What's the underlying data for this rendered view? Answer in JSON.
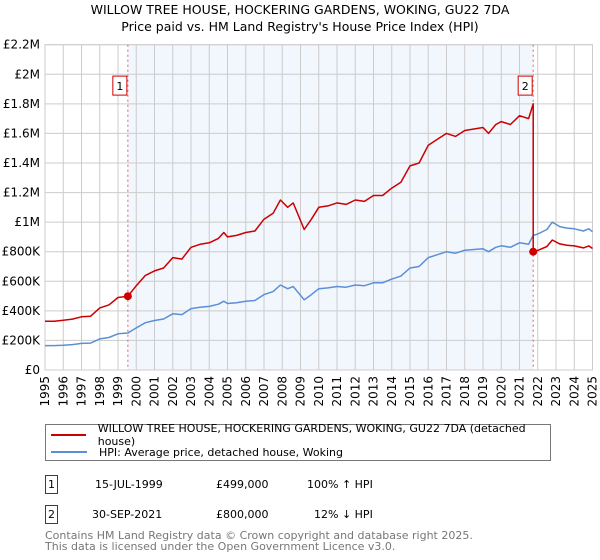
{
  "title_line1": "WILLOW TREE HOUSE, HOCKERING GARDENS, WOKING, GU22 7DA",
  "title_line2": "Price paid vs. HM Land Registry's House Price Index (HPI)",
  "chart_data": {
    "type": "line",
    "title": "WILLOW TREE HOUSE, HOCKERING GARDENS, WOKING, GU22 7DA — Price paid vs. HM Land Registry's House Price Index (HPI)",
    "xlim": [
      1995,
      2025
    ],
    "ylim": [
      0,
      2200000
    ],
    "y_ticks": [
      {
        "v": 0,
        "label": "£0"
      },
      {
        "v": 200000,
        "label": "£200K"
      },
      {
        "v": 400000,
        "label": "£400K"
      },
      {
        "v": 600000,
        "label": "£600K"
      },
      {
        "v": 800000,
        "label": "£800K"
      },
      {
        "v": 1000000,
        "label": "£1M"
      },
      {
        "v": 1200000,
        "label": "£1.2M"
      },
      {
        "v": 1400000,
        "label": "£1.4M"
      },
      {
        "v": 1600000,
        "label": "£1.6M"
      },
      {
        "v": 1800000,
        "label": "£1.8M"
      },
      {
        "v": 2000000,
        "label": "£2M"
      },
      {
        "v": 2200000,
        "label": "£2.2M"
      }
    ],
    "x_ticks": [
      "1995",
      "1996",
      "1997",
      "1998",
      "1999",
      "2000",
      "2001",
      "2002",
      "2003",
      "2004",
      "2005",
      "2006",
      "2007",
      "2008",
      "2009",
      "2010",
      "2011",
      "2012",
      "2013",
      "2014",
      "2015",
      "2016",
      "2017",
      "2018",
      "2019",
      "2020",
      "2021",
      "2022",
      "2023",
      "2024",
      "2025"
    ],
    "grid": true,
    "shaded_range": [
      1999.54,
      2021.75
    ],
    "series": [
      {
        "name": "WILLOW TREE HOUSE, HOCKERING GARDENS, WOKING, GU22 7DA (detached house)",
        "color": "#cc0000",
        "x": [
          1995,
          1995.5,
          1996,
          1996.5,
          1997,
          1997.5,
          1998,
          1998.5,
          1999,
          1999.54,
          2000,
          2000.5,
          2001,
          2001.5,
          2002,
          2002.5,
          2003,
          2003.5,
          2004,
          2004.5,
          2004.8,
          2005,
          2005.5,
          2006,
          2006.5,
          2007,
          2007.5,
          2007.9,
          2008.3,
          2008.6,
          2009.2,
          2009.6,
          2010,
          2010.5,
          2011,
          2011.5,
          2012,
          2012.5,
          2013,
          2013.5,
          2014,
          2014.5,
          2015,
          2015.5,
          2016,
          2016.5,
          2017,
          2017.5,
          2018,
          2018.5,
          2019,
          2019.3,
          2019.7,
          2020,
          2020.5,
          2021,
          2021.5,
          2021.75,
          2021.75,
          2022,
          2022.5,
          2022.8,
          2023.2,
          2023.6,
          2024,
          2024.5,
          2024.8,
          2025
        ],
        "y": [
          330000,
          330000,
          336000,
          344000,
          360000,
          364000,
          420000,
          440000,
          490000,
          499000,
          570000,
          640000,
          670000,
          690000,
          760000,
          750000,
          830000,
          850000,
          860000,
          890000,
          930000,
          900000,
          910000,
          930000,
          940000,
          1020000,
          1060000,
          1150000,
          1100000,
          1130000,
          950000,
          1020000,
          1100000,
          1110000,
          1130000,
          1120000,
          1150000,
          1140000,
          1180000,
          1180000,
          1230000,
          1270000,
          1380000,
          1400000,
          1520000,
          1560000,
          1600000,
          1580000,
          1620000,
          1630000,
          1640000,
          1600000,
          1660000,
          1680000,
          1660000,
          1720000,
          1700000,
          1800000,
          800000,
          809000,
          835000,
          879000,
          853000,
          844000,
          839000,
          826000,
          839000,
          822000
        ]
      },
      {
        "name": "HPI: Average price, detached house, Woking",
        "color": "#5b8fd6",
        "x": [
          1995,
          1995.5,
          1996,
          1996.5,
          1997,
          1997.5,
          1998,
          1998.5,
          1999,
          1999.54,
          2000,
          2000.5,
          2001,
          2001.5,
          2002,
          2002.5,
          2003,
          2003.5,
          2004,
          2004.5,
          2004.8,
          2005,
          2005.5,
          2006,
          2006.5,
          2007,
          2007.5,
          2007.9,
          2008.3,
          2008.6,
          2009.2,
          2009.6,
          2010,
          2010.5,
          2011,
          2011.5,
          2012,
          2012.5,
          2013,
          2013.5,
          2014,
          2014.5,
          2015,
          2015.5,
          2016,
          2016.5,
          2017,
          2017.5,
          2018,
          2018.5,
          2019,
          2019.3,
          2019.7,
          2020,
          2020.5,
          2021,
          2021.5,
          2021.75,
          2022,
          2022.5,
          2022.8,
          2023.2,
          2023.6,
          2024,
          2024.5,
          2024.8,
          2025
        ],
        "y": [
          165000,
          165000,
          168000,
          172000,
          180000,
          182000,
          210000,
          220000,
          245000,
          250000,
          285000,
          320000,
          335000,
          345000,
          380000,
          375000,
          415000,
          425000,
          430000,
          445000,
          465000,
          450000,
          455000,
          465000,
          470000,
          510000,
          530000,
          575000,
          550000,
          565000,
          475000,
          510000,
          550000,
          555000,
          565000,
          560000,
          575000,
          570000,
          590000,
          590000,
          615000,
          635000,
          690000,
          700000,
          760000,
          780000,
          800000,
          790000,
          810000,
          815000,
          820000,
          800000,
          830000,
          840000,
          830000,
          860000,
          850000,
          910000,
          920000,
          950000,
          1000000,
          970000,
          960000,
          955000,
          940000,
          955000,
          935000
        ]
      }
    ],
    "sales": [
      {
        "id": "1",
        "x": 1999.54,
        "y": 499000,
        "date": "15-JUL-1999",
        "price": "£499,000",
        "hpi_change": "100% ↑ HPI"
      },
      {
        "id": "2",
        "x": 2021.75,
        "y": 800000,
        "date": "30-SEP-2021",
        "price": "£800,000",
        "hpi_change": "12% ↓ HPI"
      }
    ]
  },
  "legend": {
    "property": "WILLOW TREE HOUSE, HOCKERING GARDENS, WOKING, GU22 7DA (detached house)",
    "hpi": "HPI: Average price, detached house, Woking"
  },
  "footer": {
    "line1": "Contains HM Land Registry data © Crown copyright and database right 2025.",
    "line2": "This data is licensed under the Open Government Licence v3.0."
  }
}
